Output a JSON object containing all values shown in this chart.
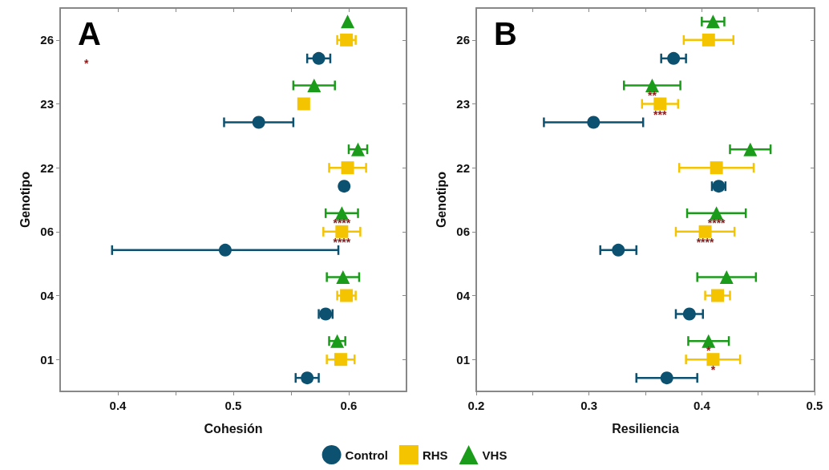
{
  "chart_data": [
    {
      "type": "scatter",
      "title": "A",
      "orientation": "horizontal",
      "categories": [
        "26",
        "23",
        "22",
        "06",
        "04",
        "01"
      ],
      "xlabel": "Cohesión",
      "ylabel": "Genotipo",
      "xlim": [
        0.35,
        0.65
      ],
      "xticks": [
        0.4,
        {
          "value": 0.45,
          "label": null
        },
        0.5,
        {
          "value": 0.55,
          "label": null
        },
        0.6
      ],
      "legend": "bottom",
      "series": [
        {
          "name": "Control",
          "color": "#0d5170",
          "marker": "circle",
          "values": [
            0.574,
            0.522,
            0.596,
            0.493,
            0.58,
            0.564
          ],
          "errors": [
            0.01,
            0.03,
            null,
            [
              0.395,
              0.591
            ],
            0.006,
            0.01
          ]
        },
        {
          "name": "RHS",
          "color": "#f5c400",
          "marker": "square",
          "values": [
            0.598,
            0.561,
            0.599,
            0.594,
            0.598,
            0.593
          ],
          "errors": [
            0.008,
            0.004,
            0.016,
            0.016,
            0.008,
            0.012
          ]
        },
        {
          "name": "VHS",
          "color": "#1a9c1a",
          "marker": "triangle",
          "values": [
            0.599,
            0.57,
            0.608,
            0.594,
            0.595,
            0.59
          ],
          "errors": [
            null,
            0.018,
            0.008,
            0.014,
            0.014,
            0.007
          ]
        }
      ],
      "annotations": [
        "*",
        {
          "text": "****",
          "x": 0.594,
          "y": "06"
        },
        {
          "text": "****",
          "x": 0.594,
          "y": "06"
        }
      ]
    },
    {
      "type": "scatter",
      "title": "B",
      "orientation": "horizontal",
      "categories": [
        "26",
        "23",
        "22",
        "06",
        "04",
        "01"
      ],
      "xlabel": "Resiliencia",
      "ylabel": "Genotipo",
      "xlim": [
        0.2,
        0.5
      ],
      "xticks": [
        0.2,
        {
          "value": 0.25,
          "label": null
        },
        0.3,
        {
          "value": 0.35,
          "label": null
        },
        0.4,
        {
          "value": 0.45,
          "label": null
        },
        0.5
      ],
      "series": [
        {
          "name": "Control",
          "color": "#0d5170",
          "marker": "circle",
          "values": [
            0.375,
            0.304,
            0.415,
            0.326,
            0.389,
            0.369
          ],
          "errors": [
            0.011,
            0.044,
            0.006,
            0.016,
            0.012,
            0.027
          ]
        },
        {
          "name": "RHS",
          "color": "#f5c400",
          "marker": "square",
          "values": [
            0.406,
            0.363,
            0.413,
            0.403,
            0.414,
            0.41
          ],
          "errors": [
            0.022,
            0.016,
            0.033,
            0.026,
            0.011,
            0.024
          ]
        },
        {
          "name": "VHS",
          "color": "#1a9c1a",
          "marker": "triangle",
          "values": [
            0.41,
            0.356,
            0.443,
            0.413,
            0.422,
            0.406
          ],
          "errors": [
            0.01,
            0.025,
            0.018,
            0.026,
            0.026,
            0.018
          ]
        }
      ],
      "annotations": [
        {
          "text": "**",
          "x": 0.356,
          "y": "23"
        },
        {
          "text": "***",
          "x": 0.363,
          "y": "23"
        },
        {
          "text": "****",
          "x": 0.413,
          "y": "06"
        },
        {
          "text": "****",
          "x": 0.403,
          "y": "06"
        },
        {
          "text": "*",
          "x": 0.406,
          "y": "01"
        },
        {
          "text": "*",
          "x": 0.41,
          "y": "01"
        }
      ]
    }
  ]
}
